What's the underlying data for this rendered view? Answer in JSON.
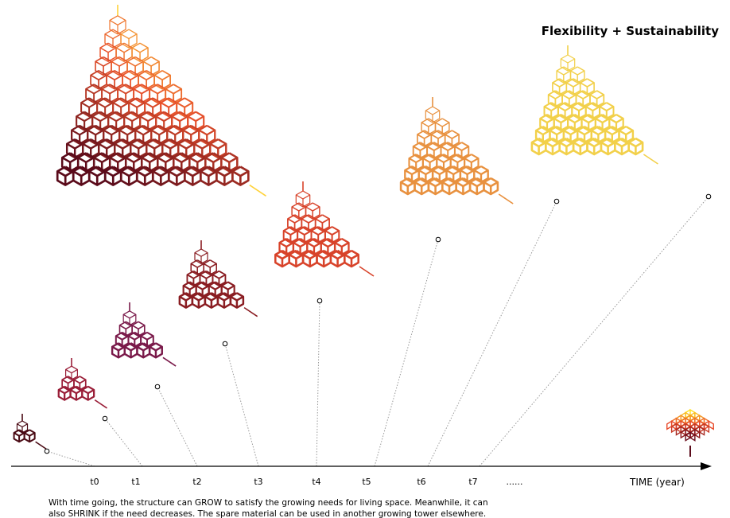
{
  "title": "Flexibility + Sustainability",
  "axis": {
    "label": "TIME (year)",
    "ticks": [
      "t0",
      "t1",
      "t2",
      "t3",
      "t4",
      "t5",
      "t6",
      "t7",
      "......"
    ]
  },
  "caption": {
    "line1": "With time going, the structure can GROW to satisfy the growing needs for living space. Meanwhile, it can",
    "line2": "also SHRINK if the need decreases. The spare material can be used in another growing tower elsewhere."
  },
  "colors": {
    "axis": "#000000",
    "leader": "#999999",
    "palette": [
      "#4a0a14",
      "#7a1a2a",
      "#9a1e38",
      "#8a1d22",
      "#d8432a",
      "#e8913f",
      "#f2d04a",
      "#ffe020"
    ]
  },
  "stages": [
    {
      "name": "t0",
      "rows": 2,
      "color": "#4a0a14"
    },
    {
      "name": "t1",
      "rows": 3,
      "color": "#9a1e38"
    },
    {
      "name": "t2",
      "rows": 4,
      "color": "#7a1a4a"
    },
    {
      "name": "t3",
      "rows": 5,
      "color": "#8a1d22"
    },
    {
      "name": "t4",
      "rows": 6,
      "color": "#d8432a"
    },
    {
      "name": "t5",
      "rows": 7,
      "color": "#e8913f"
    },
    {
      "name": "t6",
      "rows": 8,
      "color": "#f2d04a"
    },
    {
      "name": "t7",
      "rows": 12,
      "color": "#ffd23a"
    }
  ]
}
